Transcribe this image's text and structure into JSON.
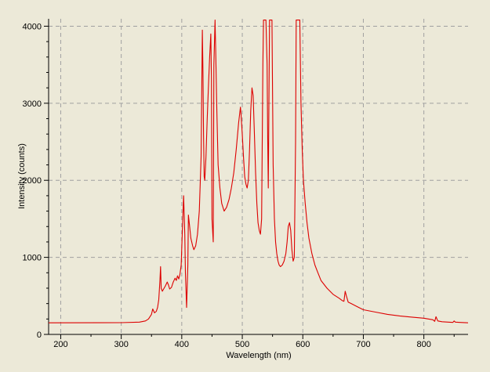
{
  "chart_data": {
    "type": "line",
    "title": "",
    "xlabel": "Wavelength (nm)",
    "ylabel": "Intensity (counts)",
    "xlim": [
      180,
      873
    ],
    "ylim": [
      0,
      4096
    ],
    "x_ticks": [
      200,
      300,
      400,
      500,
      600,
      700,
      800
    ],
    "y_ticks": [
      0,
      1000,
      2000,
      3000,
      4000
    ],
    "x_tick_labels": [
      "200",
      "300",
      "400",
      "500",
      "600",
      "700",
      "800"
    ],
    "y_tick_labels": [
      "0",
      "1000",
      "2000",
      "3000",
      "4000"
    ],
    "grid": true,
    "legend": "none",
    "colors": {
      "background": "#ece9d8",
      "line": "#dd0000",
      "axis": "#000000",
      "grid": "#a0a0a0"
    },
    "series": [
      {
        "x": [
          180,
          300,
          330,
          340,
          345,
          350,
          352,
          355,
          358,
          360,
          362,
          364,
          365,
          366,
          368,
          370,
          373,
          376,
          378,
          380,
          383,
          386,
          389,
          391,
          393,
          395,
          397,
          399,
          401,
          403,
          405,
          406,
          408,
          410,
          411,
          413,
          415,
          418,
          420,
          423,
          426,
          429,
          432,
          434,
          435,
          436,
          437,
          438,
          440,
          442,
          444,
          446,
          448,
          449,
          450,
          452,
          453,
          455,
          456,
          458,
          460,
          463,
          466,
          470,
          474,
          478,
          482,
          486,
          490,
          494,
          497,
          498,
          500,
          502,
          504,
          506,
          508,
          510,
          512,
          514,
          516,
          518,
          520,
          522,
          524,
          526,
          528,
          530,
          532,
          534,
          535,
          537,
          539,
          541,
          542,
          543,
          545,
          547,
          549,
          551,
          553,
          555,
          557,
          559,
          561,
          563,
          566,
          569,
          572,
          574,
          576,
          578,
          580,
          582,
          584,
          586,
          588,
          589,
          590,
          591,
          593,
          595,
          597,
          599,
          601,
          604,
          607,
          610,
          615,
          620,
          625,
          630,
          640,
          650,
          660,
          665,
          668,
          670,
          672,
          675,
          680,
          690,
          700,
          720,
          740,
          760,
          780,
          800,
          815,
          818,
          820,
          823,
          830,
          840,
          848,
          850,
          852,
          860,
          873
        ],
        "y": [
          150,
          152,
          160,
          175,
          200,
          260,
          330,
          280,
          300,
          350,
          450,
          700,
          880,
          600,
          560,
          590,
          630,
          680,
          640,
          590,
          610,
          680,
          730,
          700,
          760,
          720,
          780,
          900,
          1350,
          1800,
          1300,
          800,
          350,
          900,
          1550,
          1400,
          1250,
          1150,
          1100,
          1150,
          1300,
          1600,
          2300,
          3950,
          3400,
          2600,
          2050,
          2000,
          2300,
          2800,
          3200,
          3600,
          3900,
          3300,
          1500,
          1200,
          3500,
          4080,
          3700,
          2900,
          2200,
          1900,
          1700,
          1600,
          1650,
          1750,
          1900,
          2100,
          2400,
          2750,
          2950,
          2850,
          2600,
          2300,
          2050,
          1950,
          1900,
          2000,
          2400,
          2900,
          3200,
          3100,
          2600,
          2100,
          1700,
          1450,
          1350,
          1300,
          1500,
          3500,
          4080,
          4080,
          4080,
          3500,
          2500,
          1900,
          4080,
          4080,
          4080,
          2200,
          1500,
          1200,
          1050,
          950,
          900,
          880,
          900,
          950,
          1050,
          1200,
          1400,
          1450,
          1350,
          1100,
          950,
          1000,
          2500,
          4080,
          4080,
          4080,
          4080,
          4080,
          3000,
          2400,
          2000,
          1700,
          1450,
          1250,
          1050,
          900,
          800,
          700,
          600,
          520,
          470,
          440,
          430,
          560,
          500,
          420,
          400,
          360,
          320,
          290,
          260,
          240,
          225,
          210,
          190,
          170,
          230,
          175,
          165,
          160,
          155,
          175,
          160,
          155,
          150
        ]
      }
    ]
  }
}
